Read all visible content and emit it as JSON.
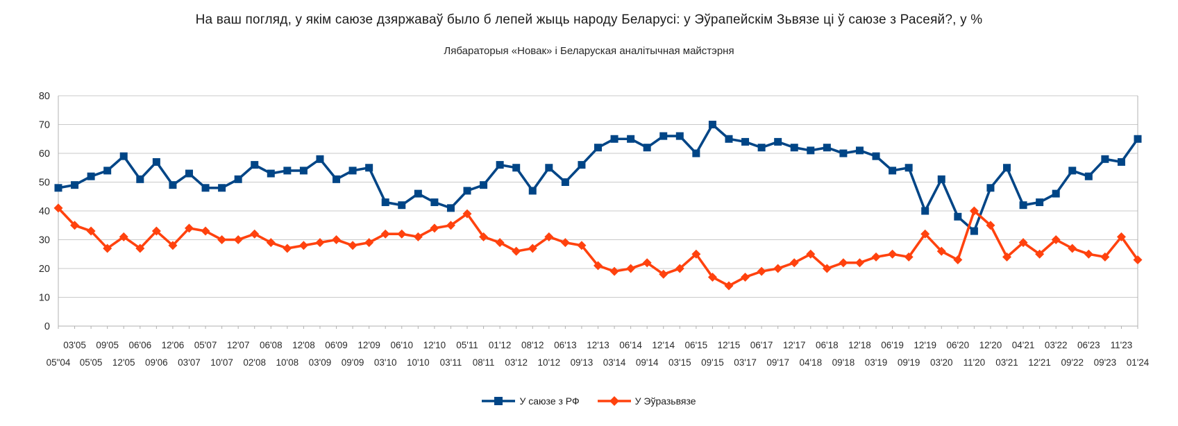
{
  "title": "На ваш погляд, у якім саюзе дзяржаваў было б лепей жыць народу Беларусі: у Эўрапейскім Зьвязе ці ў саюзе з Расеяй?, у %",
  "subtitle": "Лябараторыя «Новак» і Беларуская аналітычная майстэрня",
  "legend": {
    "rf_label": "У саюзе з РФ",
    "eu_label": "У Эўразьвязе"
  },
  "colors": {
    "rf": "#004586",
    "eu": "#FF420E",
    "gridline": "#c9c9c9",
    "axis": "#b0b0b0",
    "tick_label": "#2a2a2a"
  },
  "chart_data": {
    "type": "line",
    "title": "На ваш погляд, у якім саюзе дзяржаваў было б лепей жыць народу Беларусі: у Эўрапейскім Зьвязе ці ў саюзе з Расеяй?, у %",
    "subtitle": "Лябараторыя «Новак» і Беларуская аналітычная майстэрня",
    "grid": "horizontal",
    "legend_position": "bottom",
    "ylim": [
      0,
      80
    ],
    "ytick_step": 10,
    "x_labels": [
      "05\"04",
      "03'05",
      "05'05",
      "09'05",
      "12'05",
      "06'06",
      "09'06",
      "12'06",
      "03'07",
      "05'07",
      "10'07",
      "12'07",
      "02'08",
      "06'08",
      "10'08",
      "12'08",
      "03'09",
      "06'09",
      "09'09",
      "12'09",
      "03'10",
      "06'10",
      "10'10",
      "12'10",
      "03'11",
      "05'11",
      "08'11",
      "01'12",
      "03'12",
      "08'12",
      "10'12",
      "06'13",
      "09'13",
      "12'13",
      "03'14",
      "06'14",
      "09'14",
      "12'14",
      "03'15",
      "06'15",
      "09'15",
      "12'15",
      "03'17",
      "06'17",
      "09'17",
      "12'17",
      "04'18",
      "06'18",
      "09'18",
      "12'18",
      "03'19",
      "06'19",
      "09'19",
      "12'19",
      "03'20",
      "06'20",
      "11'20",
      "12'20",
      "03'21",
      "04'21",
      "12'21",
      "03'22",
      "09'22",
      "06'23",
      "09'23",
      "11'23",
      "01'24"
    ],
    "series": [
      {
        "name": "У саюзе з РФ",
        "color": "#004586",
        "marker": "square",
        "values": [
          48,
          49,
          52,
          54,
          59,
          51,
          57,
          49,
          53,
          48,
          48,
          51,
          56,
          53,
          54,
          54,
          58,
          51,
          54,
          55,
          43,
          42,
          46,
          43,
          41,
          47,
          49,
          56,
          55,
          47,
          55,
          50,
          56,
          62,
          65,
          65,
          62,
          66,
          66,
          60,
          70,
          65,
          64,
          62,
          64,
          62,
          61,
          62,
          60,
          61,
          59,
          54,
          55,
          40,
          51,
          38,
          33,
          48,
          55,
          42,
          43,
          46,
          54,
          52,
          58,
          57,
          65
        ]
      },
      {
        "name": "У Эўразьвязе",
        "color": "#FF420E",
        "marker": "diamond",
        "values": [
          41,
          35,
          33,
          27,
          31,
          27,
          33,
          28,
          34,
          33,
          30,
          30,
          32,
          29,
          27,
          28,
          29,
          30,
          28,
          29,
          32,
          32,
          31,
          34,
          35,
          39,
          31,
          29,
          26,
          27,
          31,
          29,
          28,
          21,
          19,
          20,
          22,
          18,
          20,
          25,
          17,
          14,
          17,
          19,
          20,
          22,
          25,
          20,
          22,
          22,
          24,
          25,
          24,
          32,
          26,
          23,
          40,
          35,
          24,
          29,
          25,
          30,
          27,
          25,
          24,
          31,
          23
        ]
      }
    ]
  }
}
